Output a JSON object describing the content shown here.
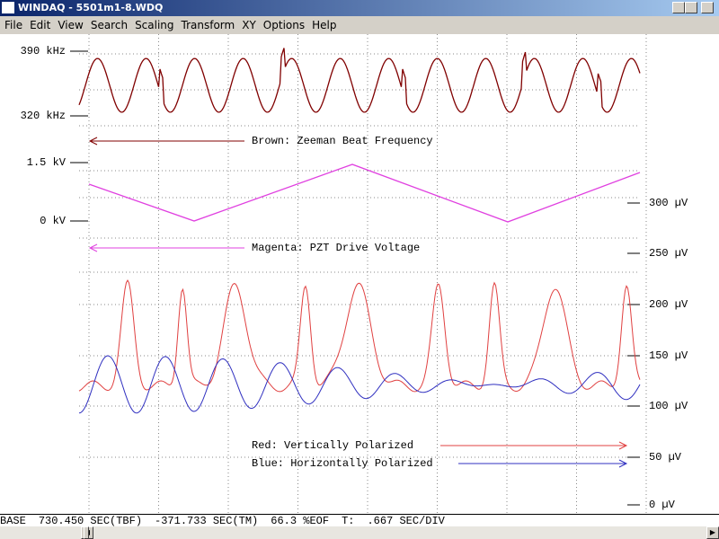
{
  "window": {
    "title": "WINDAQ - 5501m1-8.WDQ"
  },
  "menu": [
    "File",
    "Edit",
    "View",
    "Search",
    "Scaling",
    "Transform",
    "XY",
    "Options",
    "Help"
  ],
  "left_axis": [
    "390 kHz",
    "320 kHz",
    "1.5 kV",
    "0 kV"
  ],
  "right_axis": [
    "300 µV",
    "250 µV",
    "200 µV",
    "150 µV",
    "100 µV",
    "50 µV",
    "0 µV"
  ],
  "annotations": [
    "Brown: Zeeman Beat Frequency",
    "Magenta: PZT Drive Voltage",
    "Red: Vertically Polarized",
    "Blue: Horizontally Polarized"
  ],
  "status": [
    "BASE",
    "730.450 SEC(TBF)",
    "-371.733 SEC(TM)",
    "66.3 %EOF",
    "T:",
    ".667 SEC/DIV"
  ]
}
